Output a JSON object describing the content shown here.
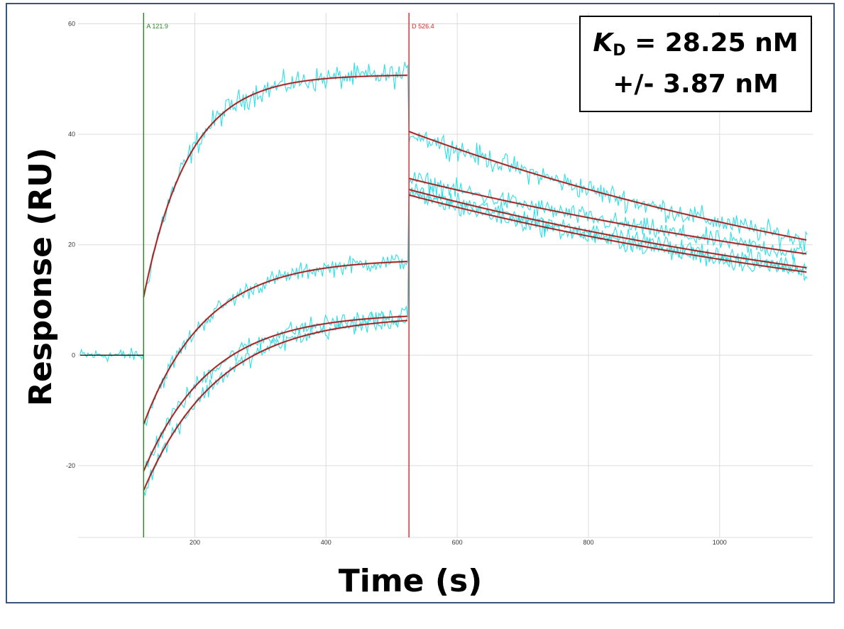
{
  "chart_data": {
    "type": "line",
    "title": "",
    "xlabel": "Time (s)",
    "ylabel": "Response (RU)",
    "xlim": [
      22,
      1142
    ],
    "ylim": [
      -33,
      62
    ],
    "xticks": [
      200,
      400,
      600,
      800,
      1000
    ],
    "yticks": [
      -20,
      0,
      20,
      40,
      60
    ],
    "grid": true,
    "markers": [
      {
        "label": "A 121.9",
        "x": 121.9,
        "color": "#228b22"
      },
      {
        "label": "D 526.4",
        "x": 526.4,
        "color": "#e8201e"
      }
    ],
    "kd_box": {
      "k_symbol": "K",
      "k_subscript": "D",
      "value_text": " = 28.25 nM",
      "error_text": "+/- 3.87 nM"
    },
    "colors": {
      "raw_data": "#2fe0e6",
      "fit_line": "#8b1a1a",
      "fit_outline": "#e8201e",
      "baseline": "#1a1a1a"
    },
    "baseline": {
      "x": [
        25,
        121.9
      ],
      "y": [
        0,
        0
      ]
    },
    "fit_series": [
      {
        "assoc_start": 10.5,
        "assoc_end": 50.8,
        "kobs": 0.0145,
        "dissoc_start": 40.5,
        "dissoc_end": 20.8,
        "noise_assoc": 3.2,
        "noise_dissoc": 3.0
      },
      {
        "assoc_start": -12.5,
        "assoc_end": 17.4,
        "kobs": 0.0105,
        "dissoc_start": 32.0,
        "dissoc_end": 18.3,
        "noise_assoc": 2.4,
        "noise_dissoc": 2.6
      },
      {
        "assoc_start": -21.0,
        "assoc_end": 7.6,
        "kobs": 0.0098,
        "dissoc_start": 30.0,
        "dissoc_end": 15.8,
        "noise_assoc": 2.4,
        "noise_dissoc": 2.4
      },
      {
        "assoc_start": -24.5,
        "assoc_end": 7.2,
        "kobs": 0.0088,
        "dissoc_start": 29.0,
        "dissoc_end": 15.0,
        "noise_assoc": 2.4,
        "noise_dissoc": 2.4
      }
    ],
    "x_end": 1135
  }
}
